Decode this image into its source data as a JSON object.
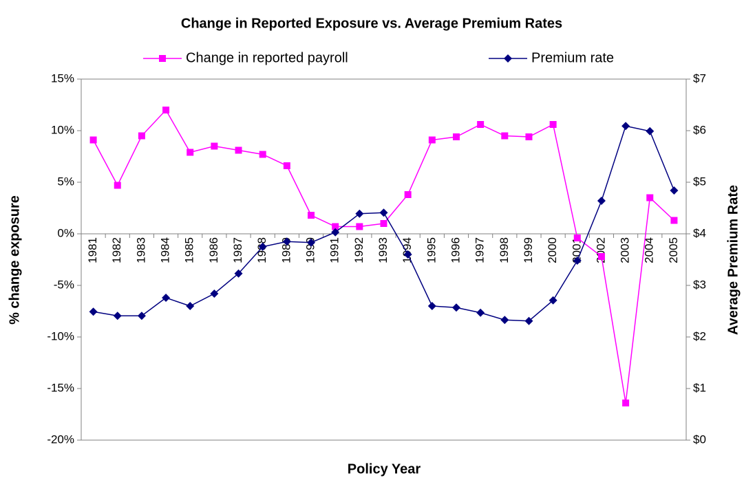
{
  "chart_data": {
    "type": "line",
    "title": "Change in Reported Exposure vs. Average Premium Rates",
    "x_label": "Policy Year",
    "y_label": "% change exposure",
    "y2_label": "Average Premium Rate",
    "legend": "top",
    "categories": [
      "1981",
      "1982",
      "1983",
      "1984",
      "1985",
      "1986",
      "1987",
      "1988",
      "1989",
      "1990",
      "1991",
      "1992",
      "1993",
      "1994",
      "1995",
      "1996",
      "1997",
      "1998",
      "1999",
      "2000",
      "2001",
      "2002",
      "2003",
      "2004",
      "2005"
    ],
    "ylim": [
      -20,
      15
    ],
    "yticks": [
      {
        "value": -20,
        "label": "-20%"
      },
      {
        "value": -15,
        "label": "-15%"
      },
      {
        "value": -10,
        "label": "-10%"
      },
      {
        "value": -5,
        "label": "-5%"
      },
      {
        "value": 0,
        "label": "0%"
      },
      {
        "value": 5,
        "label": "5%"
      },
      {
        "value": 10,
        "label": "10%"
      },
      {
        "value": 15,
        "label": "15%"
      }
    ],
    "y2lim": [
      0,
      7
    ],
    "y2ticks": [
      {
        "value": 0,
        "label": "$0"
      },
      {
        "value": 1,
        "label": "$1"
      },
      {
        "value": 2,
        "label": "$2"
      },
      {
        "value": 3,
        "label": "$3"
      },
      {
        "value": 4,
        "label": "$4"
      },
      {
        "value": 5,
        "label": "$5"
      },
      {
        "value": 6,
        "label": "$6"
      },
      {
        "value": 7,
        "label": "$7"
      }
    ],
    "series": [
      {
        "name": "Change in reported payroll",
        "color": "#ff00ff",
        "marker": "square",
        "values": [
          9.1,
          4.7,
          9.5,
          12.0,
          7.9,
          8.5,
          8.1,
          7.7,
          6.6,
          1.8,
          0.7,
          0.7,
          1.0,
          3.8,
          9.1,
          9.4,
          10.6,
          9.5,
          9.4,
          10.6,
          -0.4,
          -2.2,
          -16.4,
          3.5,
          1.3
        ]
      },
      {
        "name": "Premium rate",
        "color": "#000080",
        "marker": "diamond",
        "axis": "y2",
        "values": [
          2.49,
          2.41,
          2.41,
          2.76,
          2.6,
          2.84,
          3.23,
          3.75,
          3.85,
          3.83,
          4.03,
          4.39,
          4.41,
          3.6,
          2.6,
          2.57,
          2.47,
          2.33,
          2.31,
          2.71,
          3.48,
          4.64,
          6.09,
          5.99,
          4.84
        ]
      }
    ]
  }
}
